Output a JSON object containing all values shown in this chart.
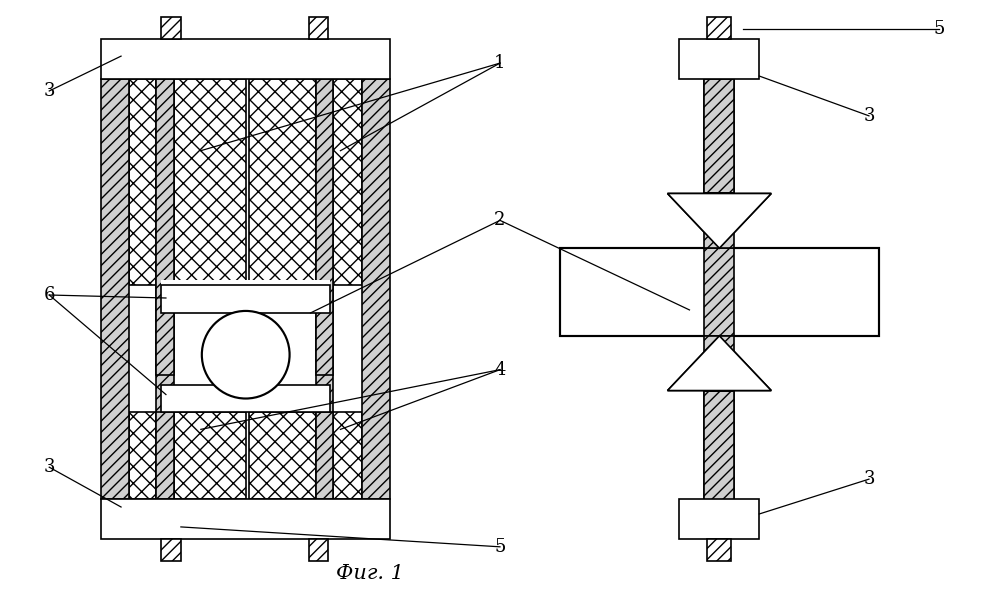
{
  "bg_color": "#ffffff",
  "fig_width": 9.99,
  "fig_height": 5.93,
  "caption": "Фиг. 1",
  "caption_fontsize": 15,
  "label_fontsize": 13
}
